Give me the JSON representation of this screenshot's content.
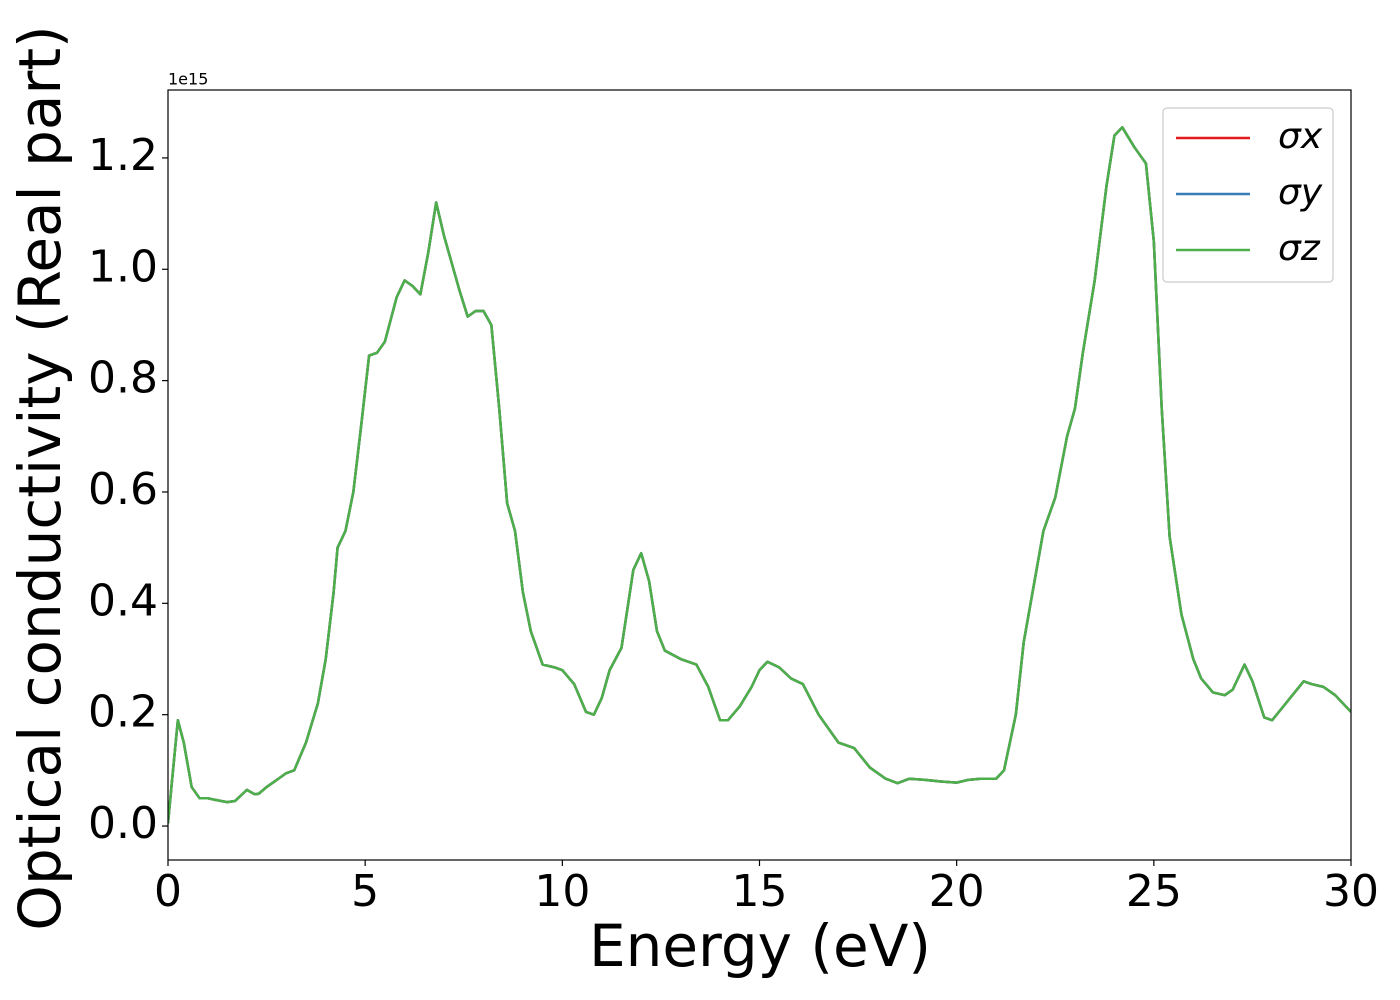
{
  "chart_data": {
    "type": "line",
    "x_label": "Energy (eV)",
    "y_label": "Optical conductivity (Real part)",
    "y_offset_text": "1e15",
    "x": [
      0,
      0.1,
      0.25,
      0.4,
      0.6,
      0.8,
      1.0,
      1.2,
      1.5,
      1.7,
      2.0,
      2.2,
      2.3,
      2.5,
      2.8,
      3.0,
      3.2,
      3.5,
      3.8,
      4.0,
      4.2,
      4.3,
      4.5,
      4.7,
      4.9,
      5.1,
      5.3,
      5.5,
      5.8,
      6.0,
      6.2,
      6.4,
      6.6,
      6.8,
      7.0,
      7.2,
      7.4,
      7.6,
      7.8,
      8.0,
      8.2,
      8.4,
      8.6,
      8.8,
      9.0,
      9.2,
      9.5,
      9.8,
      10.0,
      10.3,
      10.6,
      10.8,
      11.0,
      11.2,
      11.5,
      11.8,
      12.0,
      12.2,
      12.4,
      12.6,
      13.0,
      13.4,
      13.7,
      14.0,
      14.2,
      14.5,
      14.8,
      15.0,
      15.2,
      15.5,
      15.8,
      16.1,
      16.5,
      17.0,
      17.4,
      17.8,
      18.2,
      18.5,
      18.8,
      19.2,
      19.6,
      20.0,
      20.3,
      20.6,
      21.0,
      21.2,
      21.5,
      21.7,
      22.0,
      22.2,
      22.5,
      22.8,
      23.0,
      23.2,
      23.5,
      23.8,
      24.0,
      24.2,
      24.5,
      24.8,
      25.0,
      25.2,
      25.4,
      25.7,
      26.0,
      26.2,
      26.5,
      26.8,
      27.0,
      27.3,
      27.5,
      27.8,
      28.0,
      28.4,
      28.8,
      29.0,
      29.3,
      29.6,
      30.0
    ],
    "series": [
      {
        "name": "σx",
        "color": "#e41a1c",
        "values": [
          0.005,
          0.08,
          0.19,
          0.15,
          0.07,
          0.05,
          0.05,
          0.047,
          0.043,
          0.045,
          0.065,
          0.057,
          0.058,
          0.07,
          0.085,
          0.095,
          0.1,
          0.15,
          0.22,
          0.3,
          0.42,
          0.5,
          0.53,
          0.6,
          0.72,
          0.845,
          0.85,
          0.87,
          0.95,
          0.98,
          0.97,
          0.955,
          1.03,
          1.12,
          1.06,
          1.01,
          0.96,
          0.915,
          0.925,
          0.925,
          0.9,
          0.75,
          0.58,
          0.53,
          0.42,
          0.35,
          0.29,
          0.285,
          0.28,
          0.255,
          0.205,
          0.2,
          0.23,
          0.28,
          0.32,
          0.46,
          0.49,
          0.44,
          0.35,
          0.315,
          0.3,
          0.29,
          0.25,
          0.19,
          0.19,
          0.215,
          0.25,
          0.28,
          0.295,
          0.285,
          0.265,
          0.255,
          0.2,
          0.15,
          0.14,
          0.105,
          0.085,
          0.077,
          0.085,
          0.083,
          0.08,
          0.078,
          0.083,
          0.085,
          0.085,
          0.1,
          0.2,
          0.33,
          0.45,
          0.53,
          0.59,
          0.7,
          0.75,
          0.85,
          0.98,
          1.15,
          1.24,
          1.255,
          1.22,
          1.19,
          1.05,
          0.75,
          0.52,
          0.38,
          0.3,
          0.265,
          0.24,
          0.235,
          0.245,
          0.29,
          0.26,
          0.195,
          0.19,
          0.225,
          0.26,
          0.255,
          0.25,
          0.235,
          0.205
        ]
      },
      {
        "name": "σy",
        "color": "#377eb8",
        "values": [
          0.005,
          0.08,
          0.19,
          0.15,
          0.07,
          0.05,
          0.05,
          0.047,
          0.043,
          0.045,
          0.065,
          0.057,
          0.058,
          0.07,
          0.085,
          0.095,
          0.1,
          0.15,
          0.22,
          0.3,
          0.42,
          0.5,
          0.53,
          0.6,
          0.72,
          0.845,
          0.85,
          0.87,
          0.95,
          0.98,
          0.97,
          0.955,
          1.03,
          1.12,
          1.06,
          1.01,
          0.96,
          0.915,
          0.925,
          0.925,
          0.9,
          0.75,
          0.58,
          0.53,
          0.42,
          0.35,
          0.29,
          0.285,
          0.28,
          0.255,
          0.205,
          0.2,
          0.23,
          0.28,
          0.32,
          0.46,
          0.49,
          0.44,
          0.35,
          0.315,
          0.3,
          0.29,
          0.25,
          0.19,
          0.19,
          0.215,
          0.25,
          0.28,
          0.295,
          0.285,
          0.265,
          0.255,
          0.2,
          0.15,
          0.14,
          0.105,
          0.085,
          0.077,
          0.085,
          0.083,
          0.08,
          0.078,
          0.083,
          0.085,
          0.085,
          0.1,
          0.2,
          0.33,
          0.45,
          0.53,
          0.59,
          0.7,
          0.75,
          0.85,
          0.98,
          1.15,
          1.24,
          1.255,
          1.22,
          1.19,
          1.05,
          0.75,
          0.52,
          0.38,
          0.3,
          0.265,
          0.24,
          0.235,
          0.245,
          0.29,
          0.26,
          0.195,
          0.19,
          0.225,
          0.26,
          0.255,
          0.25,
          0.235,
          0.205
        ]
      },
      {
        "name": "σz",
        "color": "#4daf4a",
        "values": [
          0.005,
          0.08,
          0.19,
          0.15,
          0.07,
          0.05,
          0.05,
          0.047,
          0.043,
          0.045,
          0.065,
          0.057,
          0.058,
          0.07,
          0.085,
          0.095,
          0.1,
          0.15,
          0.22,
          0.3,
          0.42,
          0.5,
          0.53,
          0.6,
          0.72,
          0.845,
          0.85,
          0.87,
          0.95,
          0.98,
          0.97,
          0.955,
          1.03,
          1.12,
          1.06,
          1.01,
          0.96,
          0.915,
          0.925,
          0.925,
          0.9,
          0.75,
          0.58,
          0.53,
          0.42,
          0.35,
          0.29,
          0.285,
          0.28,
          0.255,
          0.205,
          0.2,
          0.23,
          0.28,
          0.32,
          0.46,
          0.49,
          0.44,
          0.35,
          0.315,
          0.3,
          0.29,
          0.25,
          0.19,
          0.19,
          0.215,
          0.25,
          0.28,
          0.295,
          0.285,
          0.265,
          0.255,
          0.2,
          0.15,
          0.14,
          0.105,
          0.085,
          0.077,
          0.085,
          0.083,
          0.08,
          0.078,
          0.083,
          0.085,
          0.085,
          0.1,
          0.2,
          0.33,
          0.45,
          0.53,
          0.59,
          0.7,
          0.75,
          0.85,
          0.98,
          1.15,
          1.24,
          1.255,
          1.22,
          1.19,
          1.05,
          0.75,
          0.52,
          0.38,
          0.3,
          0.265,
          0.24,
          0.235,
          0.245,
          0.29,
          0.26,
          0.195,
          0.19,
          0.225,
          0.26,
          0.255,
          0.25,
          0.235,
          0.205
        ]
      }
    ],
    "xlim": [
      0,
      30
    ],
    "xticks": [
      0,
      5,
      10,
      15,
      20,
      25,
      30
    ],
    "ylim": [
      -0.061,
      1.322
    ],
    "yticks": [
      {
        "value": 0,
        "label": "0.0"
      },
      {
        "value": 0.2,
        "label": "0.2"
      },
      {
        "value": 0.4,
        "label": "0.4"
      },
      {
        "value": 0.6,
        "label": "0.6"
      },
      {
        "value": 0.8,
        "label": "0.8"
      },
      {
        "value": 1.0,
        "label": "1.0"
      },
      {
        "value": 1.2,
        "label": "1.2"
      }
    ],
    "grid": false,
    "legend": "upper right"
  }
}
